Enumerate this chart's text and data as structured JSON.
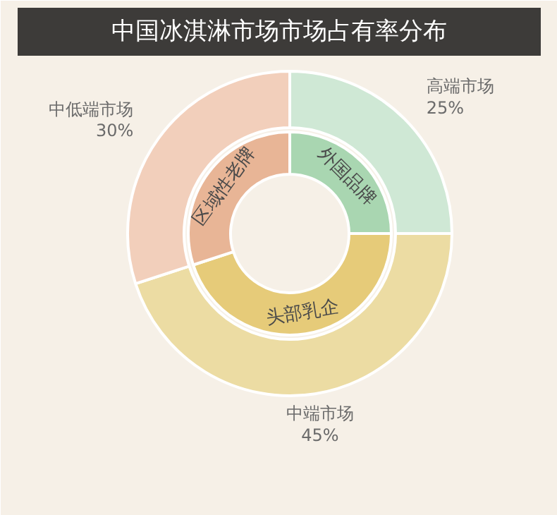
{
  "chart_data": {
    "type": "donut",
    "title": "中国冰淇淋市场市场占有率分布",
    "categories": [
      "高端市场",
      "中端市场",
      "中低端市场"
    ],
    "annotations": [
      "外国品牌",
      "头部乳企",
      "区域性老牌"
    ],
    "series": [
      {
        "values": [
          25,
          45,
          30
        ],
        "colors": [
          "#cfe8d5",
          "#ecdca3",
          "#f2cfbb"
        ],
        "value_labels": [
          "25%",
          "45%",
          "30%"
        ]
      },
      {
        "values": [
          25,
          45,
          30
        ],
        "colors": [
          "#a9d6b1",
          "#e6cb79",
          "#e8b596"
        ]
      }
    ]
  }
}
